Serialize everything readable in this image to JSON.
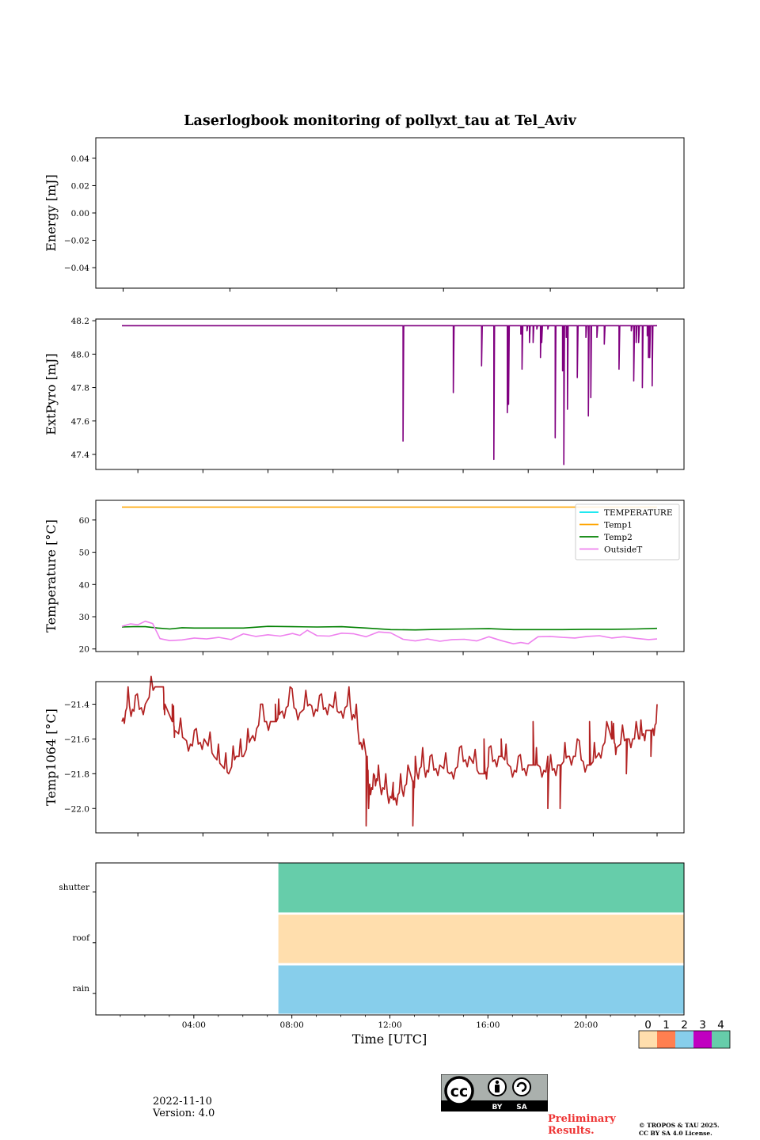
{
  "chart_data": {
    "title": "Laserlogbook monitoring of pollyxt_tau at Tel_Aviv",
    "xlabel": "Time [UTC]",
    "x_unit": "hours UTC",
    "x_ticks": [
      {
        "h": 4,
        "label": "04:00"
      },
      {
        "h": 8,
        "label": "08:00"
      },
      {
        "h": 12,
        "label": "12:00"
      },
      {
        "h": 16,
        "label": "16:00"
      },
      {
        "h": 20,
        "label": "20:00"
      }
    ],
    "panels": [
      {
        "type": "line",
        "ylabel": "Energy [mJ]",
        "ylim": [
          -0.055,
          0.055
        ],
        "yticks": [
          {
            "v": 0.04,
            "label": "0.04"
          },
          {
            "v": 0.02,
            "label": "0.02"
          },
          {
            "v": 0.0,
            "label": "0.00"
          },
          {
            "v": -0.02,
            "label": "−0.02"
          },
          {
            "v": -0.04,
            "label": "−0.04"
          }
        ],
        "xticks_h": [
          1.1,
          5.45,
          9.8,
          14.15,
          18.5,
          22.85
        ],
        "series": []
      },
      {
        "type": "line",
        "ylabel": "ExtPyro [mJ]",
        "ylim": [
          47.31,
          48.21
        ],
        "yticks": [
          {
            "v": 48.2,
            "label": "48.2"
          },
          {
            "v": 48.0,
            "label": "48.0"
          },
          {
            "v": 47.8,
            "label": "47.8"
          },
          {
            "v": 47.6,
            "label": "47.6"
          },
          {
            "v": 47.4,
            "label": "47.4"
          }
        ],
        "xticks_h": [
          1.7,
          4.35,
          7.0,
          9.65,
          12.3,
          14.95,
          17.6,
          20.25,
          22.85
        ],
        "series": [
          {
            "color": "#800080",
            "baseline": 48.17,
            "x": [
              1.05,
              22.85
            ],
            "drops": [
              [
                12.5,
                47.48
              ],
              [
                14.55,
                47.77
              ],
              [
                15.7,
                47.93
              ],
              [
                16.2,
                47.37
              ],
              [
                16.75,
                47.65
              ],
              [
                16.8,
                47.7
              ],
              [
                17.3,
                48.12
              ],
              [
                17.35,
                47.91
              ],
              [
                17.55,
                48.14
              ],
              [
                17.65,
                48.07
              ],
              [
                17.8,
                48.07
              ],
              [
                17.95,
                48.15
              ],
              [
                18.1,
                47.98
              ],
              [
                18.15,
                48.07
              ],
              [
                18.4,
                48.15
              ],
              [
                18.7,
                47.5
              ],
              [
                19.0,
                47.9
              ],
              [
                19.05,
                47.34
              ],
              [
                19.15,
                48.1
              ],
              [
                19.2,
                47.67
              ],
              [
                19.6,
                47.86
              ],
              [
                19.95,
                48.1
              ],
              [
                20.05,
                47.63
              ],
              [
                20.15,
                47.74
              ],
              [
                20.4,
                48.1
              ],
              [
                20.7,
                48.06
              ],
              [
                21.3,
                47.91
              ],
              [
                21.8,
                48.14
              ],
              [
                21.9,
                47.84
              ],
              [
                22.0,
                48.07
              ],
              [
                22.1,
                48.07
              ],
              [
                22.25,
                47.8
              ],
              [
                22.45,
                48.11
              ],
              [
                22.5,
                47.98
              ],
              [
                22.55,
                47.98
              ],
              [
                22.65,
                47.81
              ]
            ]
          }
        ]
      },
      {
        "type": "line",
        "ylabel": "Temperature [°C]",
        "ylim": [
          19.2,
          66.1
        ],
        "yticks": [
          {
            "v": 60,
            "label": "60"
          },
          {
            "v": 50,
            "label": "50"
          },
          {
            "v": 40,
            "label": "40"
          },
          {
            "v": 30,
            "label": "30"
          },
          {
            "v": 20,
            "label": "20"
          }
        ],
        "xticks_h": [
          1.7,
          4.35,
          7.0,
          9.65,
          12.3,
          14.95,
          17.6,
          20.25,
          22.85
        ],
        "legend": "top-right",
        "series": [
          {
            "name": "TEMPERATURE",
            "color": "#00e5ee",
            "x": [],
            "y": []
          },
          {
            "name": "Temp1",
            "color": "#ffa500",
            "x": [
              1.05,
              22.85
            ],
            "y": [
              64.0,
              64.0
            ]
          },
          {
            "name": "Temp2",
            "color": "#008000",
            "x": [
              1.05,
              1.5,
              2.0,
              2.5,
              3.0,
              3.5,
              4.0,
              5.0,
              6.0,
              7.0,
              8.0,
              9.0,
              10.0,
              11.0,
              12.0,
              13.0,
              14.0,
              15.0,
              16.0,
              17.0,
              18.0,
              19.0,
              20.0,
              21.0,
              22.0,
              22.85
            ],
            "y": [
              26.8,
              26.9,
              26.9,
              26.5,
              26.2,
              26.6,
              26.5,
              26.5,
              26.5,
              27.0,
              26.9,
              26.8,
              26.9,
              26.5,
              26.0,
              25.9,
              26.1,
              26.2,
              26.3,
              26.0,
              26.0,
              26.0,
              26.1,
              26.1,
              26.2,
              26.4
            ]
          },
          {
            "name": "OutsideT",
            "color": "#ee82ee",
            "x": [
              1.05,
              1.4,
              1.7,
              2.0,
              2.3,
              2.6,
              3.0,
              3.5,
              4.0,
              4.5,
              5.0,
              5.5,
              6.0,
              6.5,
              7.0,
              7.5,
              8.0,
              8.3,
              8.6,
              9.0,
              9.5,
              10.0,
              10.5,
              11.0,
              11.5,
              12.0,
              12.5,
              13.0,
              13.5,
              14.0,
              14.5,
              15.0,
              15.5,
              16.0,
              16.5,
              17.0,
              17.3,
              17.6,
              18.0,
              18.5,
              19.0,
              19.5,
              20.0,
              20.5,
              21.0,
              21.5,
              22.0,
              22.5,
              22.85
            ],
            "y": [
              27.0,
              27.8,
              27.5,
              28.6,
              27.9,
              23.2,
              22.6,
              22.8,
              23.4,
              23.1,
              23.6,
              22.9,
              24.7,
              23.9,
              24.4,
              24.0,
              24.8,
              24.2,
              25.8,
              24.1,
              24.0,
              24.9,
              24.7,
              23.8,
              25.3,
              25.0,
              23.0,
              22.5,
              23.1,
              22.4,
              22.9,
              23.0,
              22.5,
              23.8,
              22.6,
              21.6,
              22.0,
              21.6,
              23.8,
              23.9,
              23.6,
              23.4,
              23.9,
              24.1,
              23.4,
              23.8,
              23.3,
              22.9,
              23.1
            ]
          }
        ]
      },
      {
        "type": "line",
        "ylabel": "Temp1064 [°C]",
        "ylim": [
          -22.14,
          -21.27
        ],
        "yticks": [
          {
            "v": -21.4,
            "label": "−21.4"
          },
          {
            "v": -21.6,
            "label": "−21.6"
          },
          {
            "v": -21.8,
            "label": "−21.8"
          },
          {
            "v": -22.0,
            "label": "−22.0"
          }
        ],
        "xticks_h": [
          1.7,
          4.35,
          7.0,
          9.65,
          12.3,
          14.95,
          17.6,
          20.25,
          22.85
        ],
        "series": [
          {
            "color": "#b22222",
            "x": [
              1.05,
              1.3,
              1.6,
              2.0,
              2.4,
              2.8,
              3.2,
              3.6,
              4.0,
              4.4,
              4.8,
              5.1,
              5.4,
              5.7,
              6.0,
              6.3,
              6.7,
              7.1,
              7.5,
              7.9,
              8.3,
              8.7,
              9.1,
              9.5,
              9.9,
              10.3,
              10.6,
              10.9,
              11.1,
              11.3,
              11.5,
              11.8,
              12.1,
              12.4,
              12.7,
              13.0,
              13.3,
              13.6,
              14.0,
              14.4,
              14.8,
              15.2,
              15.6,
              16.0,
              16.4,
              16.8,
              17.2,
              17.6,
              18.0,
              18.4,
              18.8,
              19.2,
              19.6,
              20.0,
              20.4,
              20.8,
              21.2,
              21.6,
              22.0,
              22.4,
              22.85
            ],
            "y": [
              -21.5,
              -21.4,
              -21.45,
              -21.4,
              -21.3,
              -21.5,
              -21.55,
              -21.6,
              -21.65,
              -21.6,
              -21.7,
              -21.75,
              -21.8,
              -21.7,
              -21.7,
              -21.6,
              -21.5,
              -21.5,
              -21.45,
              -21.4,
              -21.45,
              -21.4,
              -21.45,
              -21.4,
              -21.45,
              -21.4,
              -21.5,
              -21.7,
              -22.0,
              -21.8,
              -21.85,
              -21.9,
              -21.95,
              -21.9,
              -21.85,
              -21.8,
              -21.75,
              -21.8,
              -21.75,
              -21.8,
              -21.75,
              -21.7,
              -21.8,
              -21.75,
              -21.7,
              -21.75,
              -21.8,
              -21.75,
              -21.75,
              -21.8,
              -21.75,
              -21.7,
              -21.7,
              -21.75,
              -21.7,
              -21.6,
              -21.65,
              -21.6,
              -21.6,
              -21.55,
              -21.5
            ],
            "spikes": [
              [
                2.4,
                -21.3
              ],
              [
                2.7,
                -21.3
              ],
              [
                3.1,
                -21.4
              ],
              [
                7.3,
                -21.4
              ],
              [
                11.0,
                -22.1
              ],
              [
                12.1,
                -21.9
              ],
              [
                12.9,
                -22.1
              ],
              [
                15.8,
                -21.6
              ],
              [
                16.5,
                -21.6
              ],
              [
                17.8,
                -21.5
              ],
              [
                18.4,
                -22.0
              ],
              [
                18.9,
                -22.0
              ],
              [
                20.1,
                -21.5
              ],
              [
                21.0,
                -21.5
              ],
              [
                21.6,
                -21.8
              ],
              [
                22.1,
                -21.6
              ],
              [
                22.6,
                -21.7
              ]
            ]
          }
        ]
      },
      {
        "type": "heatmap",
        "ylabel": "",
        "rows": [
          "shutter",
          "roof",
          "rain"
        ],
        "xlim_h": [
          0,
          24
        ],
        "xticks_h": [
          4,
          8,
          12,
          16,
          20
        ],
        "x_minor_h": [
          1,
          2,
          3,
          5,
          6,
          7,
          9,
          10,
          11,
          13,
          14,
          15,
          17,
          18,
          19,
          21,
          22,
          23
        ],
        "blocks": [
          {
            "row": "shutter",
            "start_h": 7.45,
            "end_h": 24,
            "value": 4
          },
          {
            "row": "roof",
            "start_h": 7.45,
            "end_h": 24,
            "value": 0
          },
          {
            "row": "rain",
            "start_h": 7.45,
            "end_h": 24,
            "value": 2
          }
        ]
      }
    ],
    "colorbar": {
      "labels": [
        "0",
        "1",
        "2",
        "3",
        "4"
      ],
      "colors": [
        "#ffdead",
        "#ff7f50",
        "#87ceeb",
        "#c000c0",
        "#66cdaa"
      ]
    }
  },
  "footer": {
    "date": "2022-11-10",
    "version": "Version: 4.0",
    "preliminary_1": "Preliminary",
    "preliminary_2": "Results.",
    "copyright_1": "© TROPOS & TAU 2025.",
    "copyright_2": "CC BY SA 4.0 License."
  },
  "license_badge": {
    "by": "BY",
    "sa": "SA",
    "cc": "cc"
  }
}
